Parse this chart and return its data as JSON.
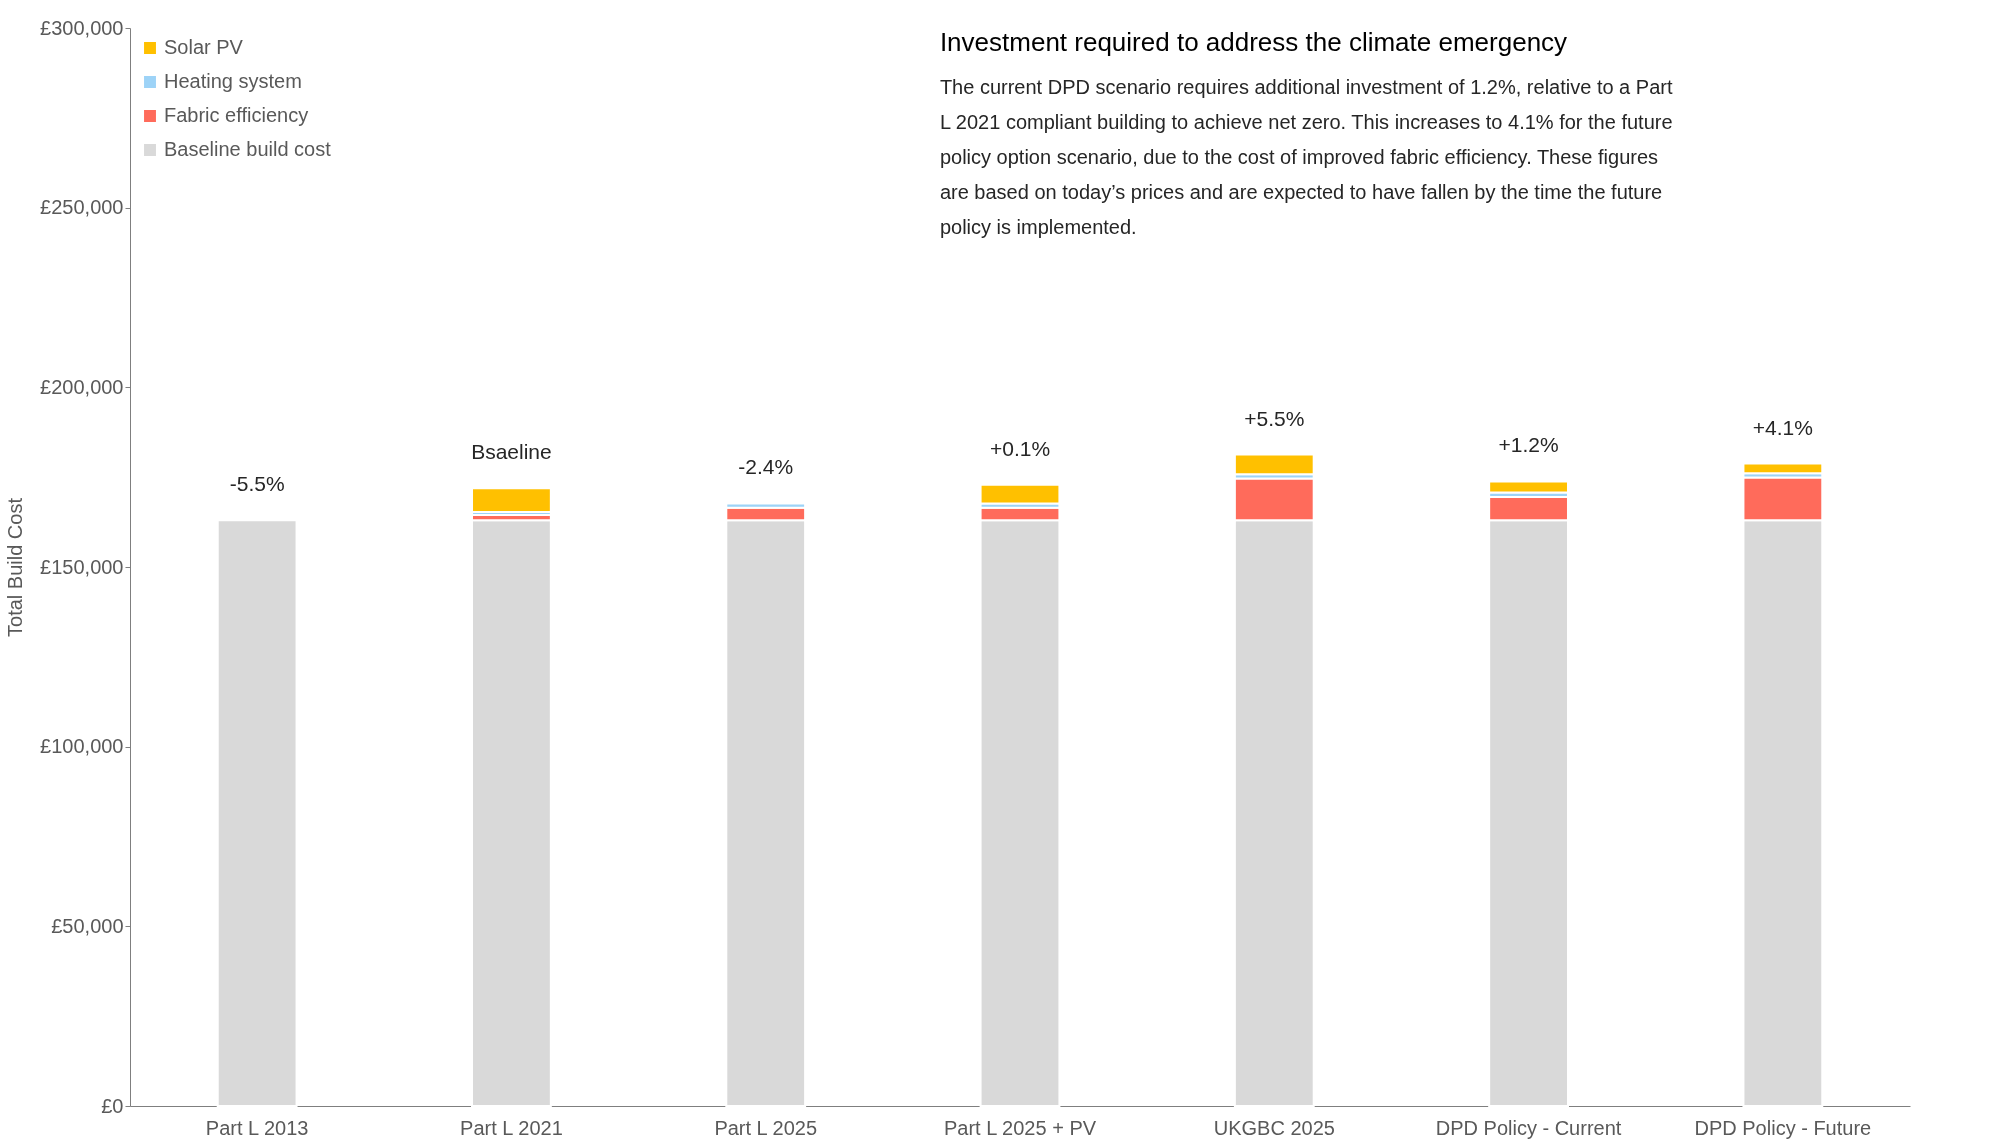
{
  "chart_data": {
    "type": "bar",
    "stacked": true,
    "title": "Investment required to address the climate emergency",
    "subtitle": "The current DPD scenario requires additional investment of 1.2%, relative to a Part L 2021 compliant building to achieve net zero. This increases to 4.1% for the future policy option scenario, due to the cost of improved fabric efficiency. These figures are based on today’s prices and are expected to have fallen by the time the future policy is implemented.",
    "ylabel": "Total Build Cost",
    "categories": [
      "Part L 2013",
      "Part L 2021",
      "Part L 2025",
      "Part L 2025 + PV",
      "UKGBC 2025",
      "DPD Policy - Current",
      "DPD Policy - Future"
    ],
    "series": [
      {
        "name": "Baseline build cost",
        "color": "#d9d9d9",
        "values": [
          163000,
          163000,
          163000,
          163000,
          163000,
          163000,
          163000
        ]
      },
      {
        "name": "Fabric efficiency",
        "color": "#ff6b5b",
        "values": [
          null,
          1500,
          3500,
          3500,
          11600,
          6500,
          11900
        ]
      },
      {
        "name": "Heating system",
        "color": "#9dd3f7",
        "values": [
          null,
          800,
          1200,
          1200,
          1200,
          1200,
          1200
        ]
      },
      {
        "name": "Solar PV",
        "color": "#ffc000",
        "values": [
          null,
          6600,
          null,
          5200,
          5500,
          3100,
          2700
        ]
      }
    ],
    "ylim": [
      0,
      300000
    ],
    "yticks": [
      {
        "value": 0,
        "label": "£0"
      },
      {
        "value": 50000,
        "label": "£50,000"
      },
      {
        "value": 100000,
        "label": "£100,000"
      },
      {
        "value": 150000,
        "label": "£150,000"
      },
      {
        "value": 200000,
        "label": "£200,000"
      },
      {
        "value": 250000,
        "label": "£250,000"
      },
      {
        "value": 300000,
        "label": "£300,000"
      }
    ],
    "annotations": [
      {
        "text": "-5.5%",
        "x": "Part L 2013",
        "y": 163000
      },
      {
        "text": "Bsaeline",
        "x": "Part L 2021",
        "y": 171900
      },
      {
        "text": "-2.4%",
        "x": "Part L 2025",
        "y": 167700
      },
      {
        "text": "+0.1%",
        "x": "Part L 2025 + PV",
        "y": 172900
      },
      {
        "text": "+5.5%",
        "x": "UKGBC 2025",
        "y": 181300
      },
      {
        "text": "+1.2%",
        "x": "DPD Policy - Current",
        "y": 173800
      },
      {
        "text": "+4.1%",
        "x": "DPD Policy - Future",
        "y": 178800
      }
    ],
    "grid": false,
    "legend": "top left"
  }
}
